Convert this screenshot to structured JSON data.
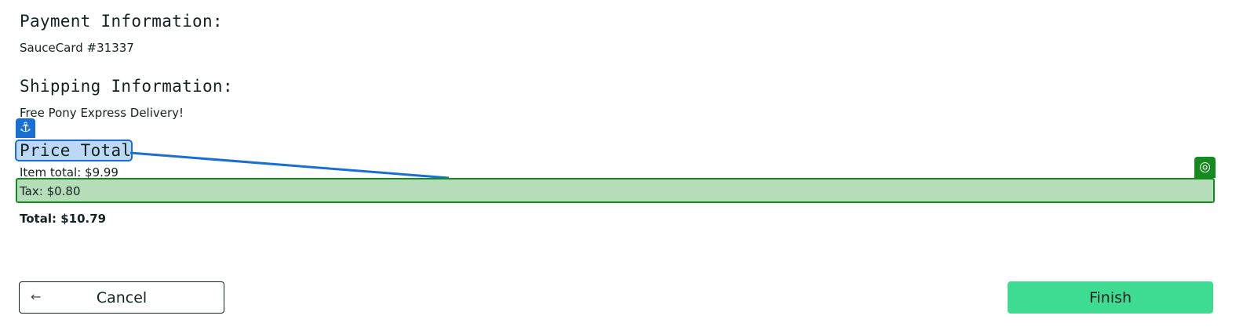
{
  "summary": {
    "payment_label": "Payment Information:",
    "payment_value": "SauceCard #31337",
    "shipping_label": "Shipping Information:",
    "shipping_value": "Free Pony Express Delivery!",
    "price_label": "Price Total",
    "item_total": "Item total: $9.99",
    "tax": "Tax: $0.80",
    "total": "Total: $10.79"
  },
  "annotations": {
    "anchor_icon": "⚓",
    "target_icon": "◎",
    "anchor_color": "#1a6fd6",
    "target_color": "#148a1f"
  },
  "actions": {
    "cancel_label": "Cancel",
    "cancel_icon": "←",
    "finish_label": "Finish"
  },
  "colors": {
    "finish_bg": "#3ddc91",
    "text": "#132322"
  }
}
